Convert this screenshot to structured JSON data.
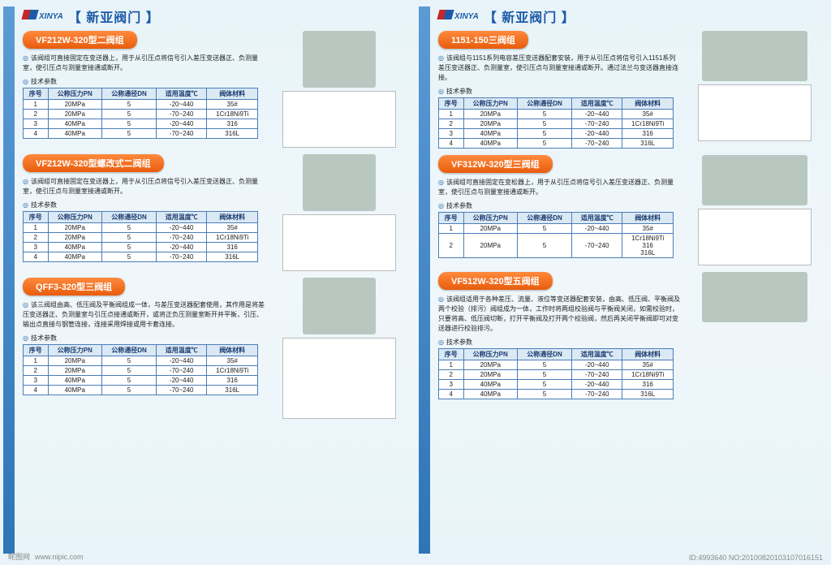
{
  "brand": {
    "logo_text": "XINYA",
    "title": "【 新亚阀门 】"
  },
  "param_header": [
    "序号",
    "公称压力PN",
    "公称通径DN",
    "适用温度℃",
    "阀体材料"
  ],
  "param_label": "技术参数",
  "products": [
    {
      "title": "VF212W-320型二阀组",
      "desc": "该阀组可直接固定在变送器上，用于从引压点将信号引入差压变送器正、负测量室，使引压点与测量室接通或断开。",
      "rows": [
        [
          "1",
          "20MPa",
          "5",
          "-20~440",
          "35#"
        ],
        [
          "2",
          "20MPa",
          "5",
          "-70~240",
          "1Cr18Ni9Ti"
        ],
        [
          "3",
          "40MPa",
          "5",
          "-20~440",
          "316"
        ],
        [
          "4",
          "40MPa",
          "5",
          "-70~240",
          "316L"
        ]
      ]
    },
    {
      "title": "VF212W-320型螺改式二阀组",
      "desc": "该阀组可直接固定在变送器上，用于从引压点将信号引入差压变送器正、负测量室，使引压点与测量室接通或断开。",
      "rows": [
        [
          "1",
          "20MPa",
          "5",
          "-20~440",
          "35#"
        ],
        [
          "2",
          "20MPa",
          "5",
          "-70~240",
          "1Cr18Ni9Ti"
        ],
        [
          "3",
          "40MPa",
          "5",
          "-20~440",
          "316"
        ],
        [
          "4",
          "40MPa",
          "5",
          "-70~240",
          "316L"
        ]
      ]
    },
    {
      "title": "QFF3-320型三阀组",
      "desc": "该三阀组由高、低压阀及平衡阀组成一体，与差压变送器配套使用，其作用是将差压变送器正、负测量室与引压点接通或断开，或将正负压测量室断开并平衡，引压、输出点直接与钢管连接，连接采用焊接或用卡套连接。",
      "rows": [
        [
          "1",
          "20MPa",
          "5",
          "-20~440",
          "35#"
        ],
        [
          "2",
          "20MPa",
          "5",
          "-70~240",
          "1Cr18Ni9Ti"
        ],
        [
          "3",
          "40MPa",
          "5",
          "-20~440",
          "316"
        ],
        [
          "4",
          "40MPa",
          "5",
          "-70~240",
          "316L"
        ]
      ]
    },
    {
      "title": "1151-150三阀组",
      "desc": "该阀组与1151系列电容差压变送器配套安装，用于从引压点将信号引入1151系列差压变送器正、负测量室，使引压点与测量室接通或断开。通过法兰与变送器直接连接。",
      "rows": [
        [
          "1",
          "20MPa",
          "5",
          "-20~440",
          "35#"
        ],
        [
          "2",
          "20MPa",
          "5",
          "-70~240",
          "1Cr18Ni9Ti"
        ],
        [
          "3",
          "40MPa",
          "5",
          "-20~440",
          "316"
        ],
        [
          "4",
          "40MPa",
          "5",
          "-70~240",
          "316L"
        ]
      ]
    },
    {
      "title": "VF312W-320型三阀组",
      "desc": "该阀组可直接固定在变松器上，用于从引压点将信号引入差压变送器正、负测量室，使引压点与测量室接通或断开。",
      "rows": [
        [
          "1",
          "20MPa",
          "5",
          "-20~440",
          "35#"
        ],
        [
          "2",
          "20MPa",
          "5",
          "-70~240",
          "1Cr18Ni9Ti\n316\n316L"
        ]
      ]
    },
    {
      "title": "VF512W-320型五阀组",
      "desc": "该阀组适用于各种差压、流量、液位等变送器配套安装，由高、低压阀、平衡阀及两个校验（排污）阀组成为一体，工作时将两组校验阀与平衡阀关闭，如需校验时，只要将高、低压阀切断，打开平衡阀及打开两个校验阀，然后再关闭平衡阀即可对变送器进行校验排污。",
      "rows": [
        [
          "1",
          "20MPa",
          "5",
          "-20~440",
          "35#"
        ],
        [
          "2",
          "20MPa",
          "5",
          "-70~240",
          "1Cr18Ni9Ti"
        ],
        [
          "3",
          "40MPa",
          "5",
          "-20~440",
          "316"
        ],
        [
          "4",
          "40MPa",
          "5",
          "-70~240",
          "316L"
        ]
      ]
    }
  ],
  "footer": {
    "site": "昵图网",
    "url": "www.nipic.com",
    "meta": "ID:4993640  NO:20100820103107016151"
  },
  "colors": {
    "pill_grad_top": "#ff8a3d",
    "pill_grad_bot": "#e85c0c",
    "brand": "#1e5aa8",
    "border": "#4a7db8",
    "th_bg": "#dbe9f5"
  }
}
